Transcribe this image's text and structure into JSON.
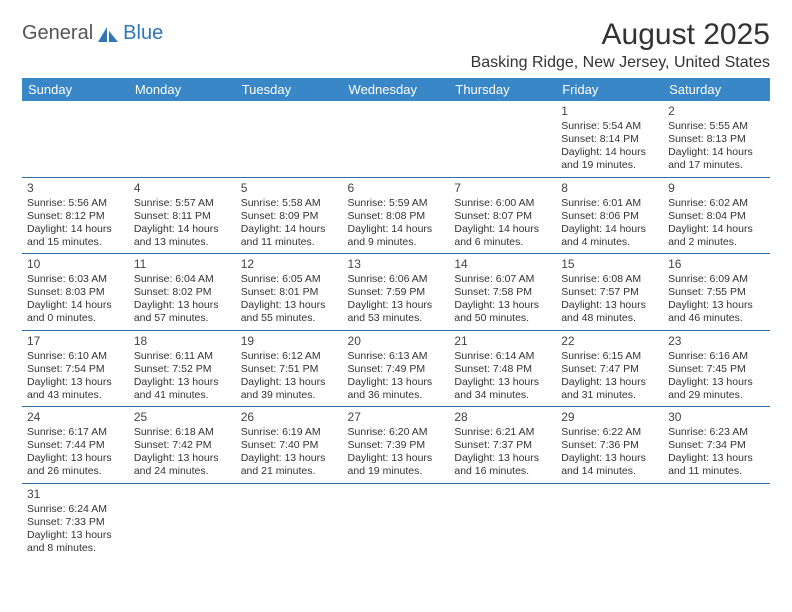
{
  "logo": {
    "word1": "General",
    "word2": "Blue",
    "brand_color": "#2e77b8"
  },
  "header": {
    "title": "August 2025",
    "location": "Basking Ridge, New Jersey, United States"
  },
  "calendar": {
    "header_bg": "#3a87c7",
    "header_fg": "#ffffff",
    "rule_color": "#2e6da8",
    "dow": [
      "Sunday",
      "Monday",
      "Tuesday",
      "Wednesday",
      "Thursday",
      "Friday",
      "Saturday"
    ],
    "weeks": [
      [
        null,
        null,
        null,
        null,
        null,
        {
          "d": "1",
          "sr": "Sunrise: 5:54 AM",
          "ss": "Sunset: 8:14 PM",
          "dl1": "Daylight: 14 hours",
          "dl2": "and 19 minutes."
        },
        {
          "d": "2",
          "sr": "Sunrise: 5:55 AM",
          "ss": "Sunset: 8:13 PM",
          "dl1": "Daylight: 14 hours",
          "dl2": "and 17 minutes."
        }
      ],
      [
        {
          "d": "3",
          "sr": "Sunrise: 5:56 AM",
          "ss": "Sunset: 8:12 PM",
          "dl1": "Daylight: 14 hours",
          "dl2": "and 15 minutes."
        },
        {
          "d": "4",
          "sr": "Sunrise: 5:57 AM",
          "ss": "Sunset: 8:11 PM",
          "dl1": "Daylight: 14 hours",
          "dl2": "and 13 minutes."
        },
        {
          "d": "5",
          "sr": "Sunrise: 5:58 AM",
          "ss": "Sunset: 8:09 PM",
          "dl1": "Daylight: 14 hours",
          "dl2": "and 11 minutes."
        },
        {
          "d": "6",
          "sr": "Sunrise: 5:59 AM",
          "ss": "Sunset: 8:08 PM",
          "dl1": "Daylight: 14 hours",
          "dl2": "and 9 minutes."
        },
        {
          "d": "7",
          "sr": "Sunrise: 6:00 AM",
          "ss": "Sunset: 8:07 PM",
          "dl1": "Daylight: 14 hours",
          "dl2": "and 6 minutes."
        },
        {
          "d": "8",
          "sr": "Sunrise: 6:01 AM",
          "ss": "Sunset: 8:06 PM",
          "dl1": "Daylight: 14 hours",
          "dl2": "and 4 minutes."
        },
        {
          "d": "9",
          "sr": "Sunrise: 6:02 AM",
          "ss": "Sunset: 8:04 PM",
          "dl1": "Daylight: 14 hours",
          "dl2": "and 2 minutes."
        }
      ],
      [
        {
          "d": "10",
          "sr": "Sunrise: 6:03 AM",
          "ss": "Sunset: 8:03 PM",
          "dl1": "Daylight: 14 hours",
          "dl2": "and 0 minutes."
        },
        {
          "d": "11",
          "sr": "Sunrise: 6:04 AM",
          "ss": "Sunset: 8:02 PM",
          "dl1": "Daylight: 13 hours",
          "dl2": "and 57 minutes."
        },
        {
          "d": "12",
          "sr": "Sunrise: 6:05 AM",
          "ss": "Sunset: 8:01 PM",
          "dl1": "Daylight: 13 hours",
          "dl2": "and 55 minutes."
        },
        {
          "d": "13",
          "sr": "Sunrise: 6:06 AM",
          "ss": "Sunset: 7:59 PM",
          "dl1": "Daylight: 13 hours",
          "dl2": "and 53 minutes."
        },
        {
          "d": "14",
          "sr": "Sunrise: 6:07 AM",
          "ss": "Sunset: 7:58 PM",
          "dl1": "Daylight: 13 hours",
          "dl2": "and 50 minutes."
        },
        {
          "d": "15",
          "sr": "Sunrise: 6:08 AM",
          "ss": "Sunset: 7:57 PM",
          "dl1": "Daylight: 13 hours",
          "dl2": "and 48 minutes."
        },
        {
          "d": "16",
          "sr": "Sunrise: 6:09 AM",
          "ss": "Sunset: 7:55 PM",
          "dl1": "Daylight: 13 hours",
          "dl2": "and 46 minutes."
        }
      ],
      [
        {
          "d": "17",
          "sr": "Sunrise: 6:10 AM",
          "ss": "Sunset: 7:54 PM",
          "dl1": "Daylight: 13 hours",
          "dl2": "and 43 minutes."
        },
        {
          "d": "18",
          "sr": "Sunrise: 6:11 AM",
          "ss": "Sunset: 7:52 PM",
          "dl1": "Daylight: 13 hours",
          "dl2": "and 41 minutes."
        },
        {
          "d": "19",
          "sr": "Sunrise: 6:12 AM",
          "ss": "Sunset: 7:51 PM",
          "dl1": "Daylight: 13 hours",
          "dl2": "and 39 minutes."
        },
        {
          "d": "20",
          "sr": "Sunrise: 6:13 AM",
          "ss": "Sunset: 7:49 PM",
          "dl1": "Daylight: 13 hours",
          "dl2": "and 36 minutes."
        },
        {
          "d": "21",
          "sr": "Sunrise: 6:14 AM",
          "ss": "Sunset: 7:48 PM",
          "dl1": "Daylight: 13 hours",
          "dl2": "and 34 minutes."
        },
        {
          "d": "22",
          "sr": "Sunrise: 6:15 AM",
          "ss": "Sunset: 7:47 PM",
          "dl1": "Daylight: 13 hours",
          "dl2": "and 31 minutes."
        },
        {
          "d": "23",
          "sr": "Sunrise: 6:16 AM",
          "ss": "Sunset: 7:45 PM",
          "dl1": "Daylight: 13 hours",
          "dl2": "and 29 minutes."
        }
      ],
      [
        {
          "d": "24",
          "sr": "Sunrise: 6:17 AM",
          "ss": "Sunset: 7:44 PM",
          "dl1": "Daylight: 13 hours",
          "dl2": "and 26 minutes."
        },
        {
          "d": "25",
          "sr": "Sunrise: 6:18 AM",
          "ss": "Sunset: 7:42 PM",
          "dl1": "Daylight: 13 hours",
          "dl2": "and 24 minutes."
        },
        {
          "d": "26",
          "sr": "Sunrise: 6:19 AM",
          "ss": "Sunset: 7:40 PM",
          "dl1": "Daylight: 13 hours",
          "dl2": "and 21 minutes."
        },
        {
          "d": "27",
          "sr": "Sunrise: 6:20 AM",
          "ss": "Sunset: 7:39 PM",
          "dl1": "Daylight: 13 hours",
          "dl2": "and 19 minutes."
        },
        {
          "d": "28",
          "sr": "Sunrise: 6:21 AM",
          "ss": "Sunset: 7:37 PM",
          "dl1": "Daylight: 13 hours",
          "dl2": "and 16 minutes."
        },
        {
          "d": "29",
          "sr": "Sunrise: 6:22 AM",
          "ss": "Sunset: 7:36 PM",
          "dl1": "Daylight: 13 hours",
          "dl2": "and 14 minutes."
        },
        {
          "d": "30",
          "sr": "Sunrise: 6:23 AM",
          "ss": "Sunset: 7:34 PM",
          "dl1": "Daylight: 13 hours",
          "dl2": "and 11 minutes."
        }
      ],
      [
        {
          "d": "31",
          "sr": "Sunrise: 6:24 AM",
          "ss": "Sunset: 7:33 PM",
          "dl1": "Daylight: 13 hours",
          "dl2": "and 8 minutes."
        },
        null,
        null,
        null,
        null,
        null,
        null
      ]
    ]
  }
}
